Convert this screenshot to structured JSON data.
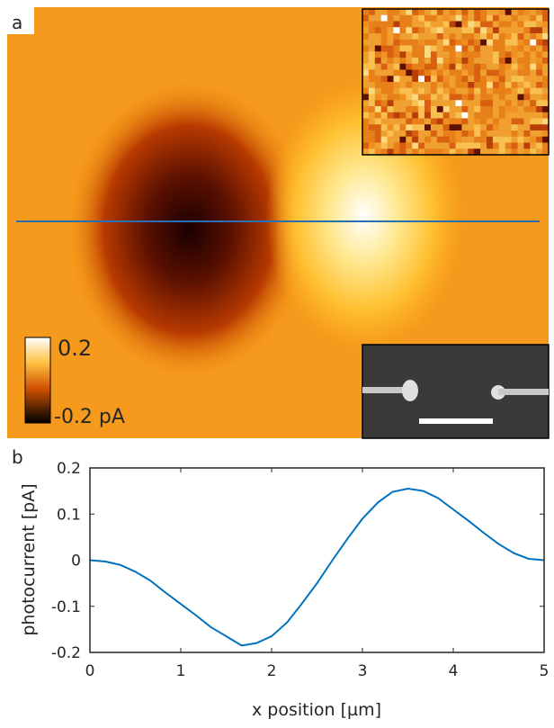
{
  "panel_a": {
    "label": "a",
    "colorbar": {
      "max_label": "0.2",
      "min_label": "-0.2 pA"
    }
  },
  "chart_data": {
    "type": "line",
    "panel_label": "b",
    "xlabel": "x position [µm]",
    "ylabel": "photocurrent [pA]",
    "x": [
      0,
      0.17,
      0.33,
      0.5,
      0.67,
      0.83,
      1.0,
      1.17,
      1.33,
      1.5,
      1.67,
      1.83,
      2.0,
      2.17,
      2.33,
      2.5,
      2.67,
      2.83,
      3.0,
      3.17,
      3.33,
      3.5,
      3.67,
      3.83,
      4.0,
      4.17,
      4.33,
      4.5,
      4.67,
      4.83,
      5.0
    ],
    "values": [
      0,
      -0.003,
      -0.01,
      -0.025,
      -0.045,
      -0.07,
      -0.095,
      -0.12,
      -0.145,
      -0.165,
      -0.185,
      -0.18,
      -0.165,
      -0.135,
      -0.095,
      -0.05,
      0.0,
      0.045,
      0.09,
      0.125,
      0.148,
      0.155,
      0.15,
      0.135,
      0.11,
      0.085,
      0.06,
      0.035,
      0.015,
      0.003,
      0
    ],
    "color": "#0072bd",
    "xlim": [
      0,
      5
    ],
    "xticks": [
      0,
      1,
      2,
      3,
      4,
      5
    ],
    "ylim": [
      -0.2,
      0.2
    ],
    "yticks": [
      -0.2,
      -0.1,
      0,
      0.1,
      0.2
    ]
  }
}
